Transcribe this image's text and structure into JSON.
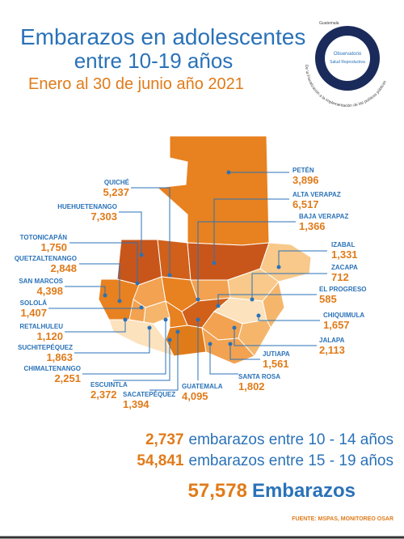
{
  "header": {
    "title_line1": "Embarazos en adolescentes",
    "title_line2": "entre 10-19 años",
    "subtitle": "Enero al 30 de junio año 2021"
  },
  "logo": {
    "top": "Guatemala",
    "name": "Observatorio",
    "sub": "Salud Reproductiva",
    "motto": "De la Fiscalización a la implementación de las políticas públicas"
  },
  "departments": [
    {
      "name": "PETÉN",
      "value": "3,896"
    },
    {
      "name": "QUICHÉ",
      "value": "5,237"
    },
    {
      "name": "HUEHUETENANGO",
      "value": "7,303"
    },
    {
      "name": "ALTA VERAPAZ",
      "value": "6,517"
    },
    {
      "name": "BAJA VERAPAZ",
      "value": "1,366"
    },
    {
      "name": "TOTONICAPÁN",
      "value": "1,750"
    },
    {
      "name": "IZABAL",
      "value": "1,331"
    },
    {
      "name": "QUETZALTENANGO",
      "value": "2,848"
    },
    {
      "name": "ZACAPA",
      "value": "712"
    },
    {
      "name": "SAN MARCOS",
      "value": "4,398"
    },
    {
      "name": "EL PROGRESO",
      "value": "585"
    },
    {
      "name": "SOLOLÁ",
      "value": "1,407"
    },
    {
      "name": "CHIQUIMULA",
      "value": "1,657"
    },
    {
      "name": "RETALHULEU",
      "value": "1,120"
    },
    {
      "name": "JALAPA",
      "value": "2,113"
    },
    {
      "name": "SUCHITEPÉQUEZ",
      "value": "1,863"
    },
    {
      "name": "JUTIAPA",
      "value": "1,561"
    },
    {
      "name": "CHIMALTENANGO",
      "value": "2,251"
    },
    {
      "name": "SANTA ROSA",
      "value": "1,802"
    },
    {
      "name": "ESCUINTLA",
      "value": "2,372"
    },
    {
      "name": "SACATEPÉQUEZ",
      "value": "1,394"
    },
    {
      "name": "GUATEMALA",
      "value": "4,095"
    }
  ],
  "totals": [
    {
      "value": "2,737",
      "label": "embarazos entre 10 - 14 años"
    },
    {
      "value": "54,841",
      "label": "embarazos entre 15 - 19 años"
    },
    {
      "value": "57,578",
      "label": "Embarazos"
    }
  ],
  "source": "FUENTE: MSPAS, MONITOREO OSAR"
}
